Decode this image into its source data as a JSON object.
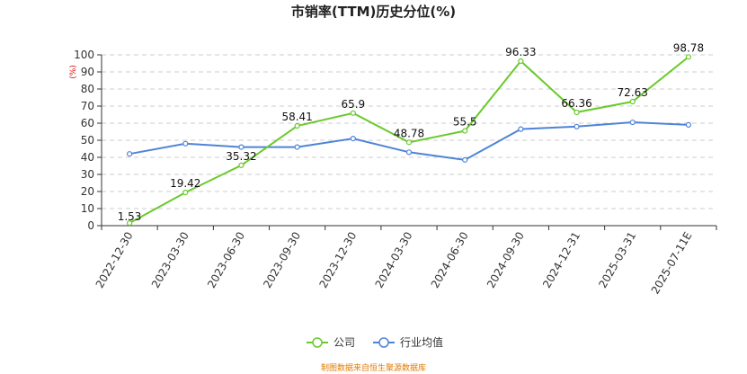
{
  "chart_data": {
    "type": "line",
    "title": "市销率(TTM)历史分位(%)",
    "ylabel": "(%)",
    "ylim": [
      0,
      100
    ],
    "yticks": [
      0,
      10,
      20,
      30,
      40,
      50,
      60,
      70,
      80,
      90,
      100
    ],
    "grid": true,
    "legend_position": "bottom",
    "categories": [
      "2022-12-30",
      "2023-03-30",
      "2023-06-30",
      "2023-09-30",
      "2023-12-30",
      "2024-03-30",
      "2024-06-30",
      "2024-09-30",
      "2024-12-31",
      "2025-03-31",
      "2025-07-11E"
    ],
    "series": [
      {
        "name": "公司",
        "color": "#6ac92b",
        "values": [
          1.53,
          19.42,
          35.32,
          58.41,
          65.9,
          48.78,
          55.5,
          96.33,
          66.36,
          72.63,
          98.78
        ],
        "labels": [
          "1.53",
          "19.42",
          "35.32",
          "58.41",
          "65.9",
          "48.78",
          "55.5",
          "96.33",
          "66.36",
          "72.63",
          "98.78"
        ],
        "show_labels": true
      },
      {
        "name": "行业均值",
        "color": "#4e84d6",
        "values": [
          42,
          48,
          46,
          46,
          51,
          43,
          38.5,
          56.5,
          58,
          60.5,
          59
        ],
        "show_labels": false
      }
    ],
    "source": "制图数据来自恒生聚源数据库"
  }
}
